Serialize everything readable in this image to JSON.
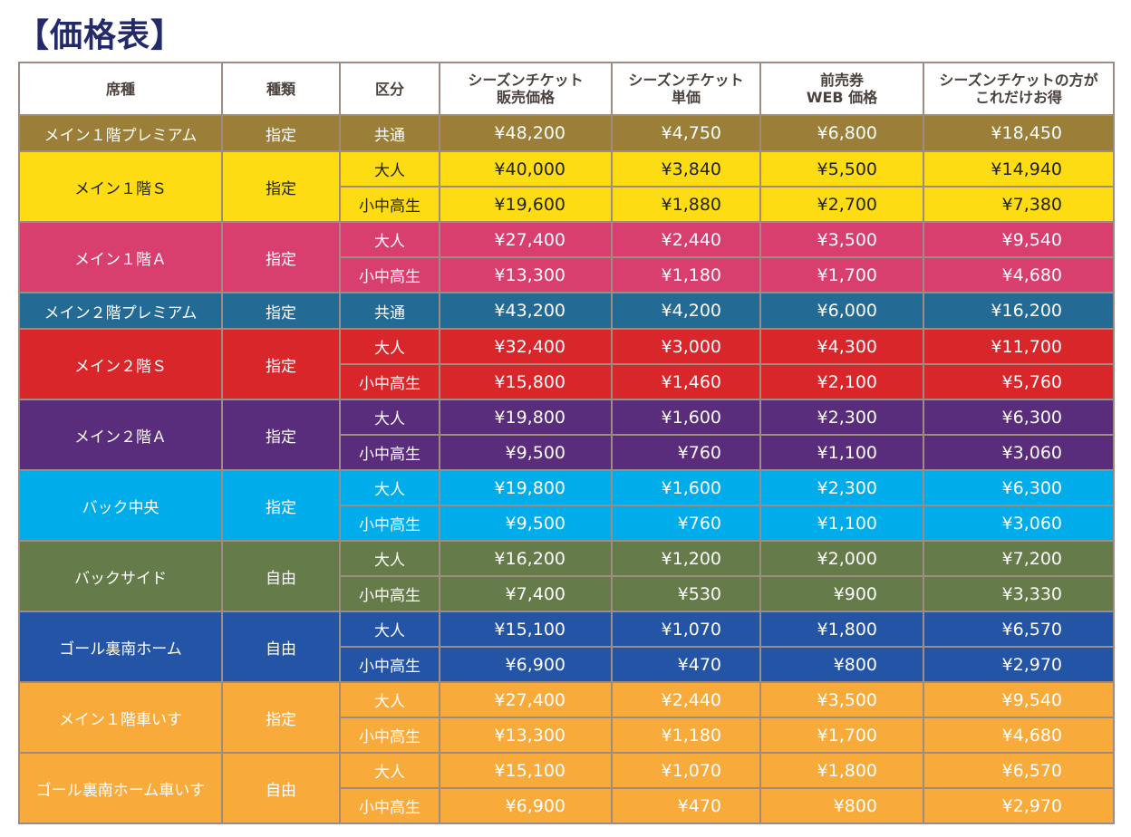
{
  "title": "【価格表】",
  "headers": [
    "席種",
    "種類",
    "区分",
    "シーズンチケット\n販売価格",
    "シーズンチケット\n単価",
    "前売券\nWEB 価格",
    "シーズンチケットの方が\nこれだけお得"
  ],
  "rows": [
    {
      "seat": "メイン１階プレミアム",
      "type": "指定",
      "color": "#9b7f38",
      "dark": false,
      "sub": [
        {
          "cat": "共通",
          "prices": [
            "¥48,200",
            "¥4,750",
            "¥6,800",
            "¥18,450"
          ]
        }
      ]
    },
    {
      "seat": "メイン１階Ｓ",
      "type": "指定",
      "color": "#fddc14",
      "dark": true,
      "sub": [
        {
          "cat": "大人",
          "prices": [
            "¥40,000",
            "¥3,840",
            "¥5,500",
            "¥14,940"
          ]
        },
        {
          "cat": "小中高生",
          "prices": [
            "¥19,600",
            "¥1,880",
            "¥2,700",
            "¥7,380"
          ]
        }
      ]
    },
    {
      "seat": "メイン１階Ａ",
      "type": "指定",
      "color": "#d83e6e",
      "dark": false,
      "sub": [
        {
          "cat": "大人",
          "prices": [
            "¥27,400",
            "¥2,440",
            "¥3,500",
            "¥9,540"
          ]
        },
        {
          "cat": "小中高生",
          "prices": [
            "¥13,300",
            "¥1,180",
            "¥1,700",
            "¥4,680"
          ]
        }
      ]
    },
    {
      "seat": "メイン２階プレミアム",
      "type": "指定",
      "color": "#236b95",
      "dark": false,
      "sub": [
        {
          "cat": "共通",
          "prices": [
            "¥43,200",
            "¥4,200",
            "¥6,000",
            "¥16,200"
          ]
        }
      ]
    },
    {
      "seat": "メイン２階Ｓ",
      "type": "指定",
      "color": "#d8262a",
      "dark": false,
      "sub": [
        {
          "cat": "大人",
          "prices": [
            "¥32,400",
            "¥3,000",
            "¥4,300",
            "¥11,700"
          ]
        },
        {
          "cat": "小中高生",
          "prices": [
            "¥15,800",
            "¥1,460",
            "¥2,100",
            "¥5,760"
          ]
        }
      ]
    },
    {
      "seat": "メイン２階Ａ",
      "type": "指定",
      "color": "#5a2c7c",
      "dark": false,
      "sub": [
        {
          "cat": "大人",
          "prices": [
            "¥19,800",
            "¥1,600",
            "¥2,300",
            "¥6,300"
          ]
        },
        {
          "cat": "小中高生",
          "prices": [
            "¥9,500",
            "¥760",
            "¥1,100",
            "¥3,060"
          ]
        }
      ]
    },
    {
      "seat": "バック中央",
      "type": "指定",
      "color": "#00adea",
      "dark": false,
      "sub": [
        {
          "cat": "大人",
          "prices": [
            "¥19,800",
            "¥1,600",
            "¥2,300",
            "¥6,300"
          ]
        },
        {
          "cat": "小中高生",
          "prices": [
            "¥9,500",
            "¥760",
            "¥1,100",
            "¥3,060"
          ]
        }
      ]
    },
    {
      "seat": "バックサイド",
      "type": "自由",
      "color": "#667b4a",
      "dark": false,
      "sub": [
        {
          "cat": "大人",
          "prices": [
            "¥16,200",
            "¥1,200",
            "¥2,000",
            "¥7,200"
          ]
        },
        {
          "cat": "小中高生",
          "prices": [
            "¥7,400",
            "¥530",
            "¥900",
            "¥3,330"
          ]
        }
      ]
    },
    {
      "seat": "ゴール裏南ホーム",
      "type": "自由",
      "color": "#2454a5",
      "dark": false,
      "sub": [
        {
          "cat": "大人",
          "prices": [
            "¥15,100",
            "¥1,070",
            "¥1,800",
            "¥6,570"
          ]
        },
        {
          "cat": "小中高生",
          "prices": [
            "¥6,900",
            "¥470",
            "¥800",
            "¥2,970"
          ]
        }
      ]
    },
    {
      "seat": "メイン１階車いす",
      "type": "指定",
      "color": "#f8ab3b",
      "dark": false,
      "sub": [
        {
          "cat": "大人",
          "prices": [
            "¥27,400",
            "¥2,440",
            "¥3,500",
            "¥9,540"
          ]
        },
        {
          "cat": "小中高生",
          "prices": [
            "¥13,300",
            "¥1,180",
            "¥1,700",
            "¥4,680"
          ]
        }
      ]
    },
    {
      "seat": "ゴール裏南ホーム車いす",
      "type": "自由",
      "color": "#f8ab3b",
      "dark": false,
      "sub": [
        {
          "cat": "大人",
          "prices": [
            "¥15,100",
            "¥1,070",
            "¥1,800",
            "¥6,570"
          ]
        },
        {
          "cat": "小中高生",
          "prices": [
            "¥6,900",
            "¥470",
            "¥800",
            "¥2,970"
          ]
        }
      ]
    }
  ]
}
